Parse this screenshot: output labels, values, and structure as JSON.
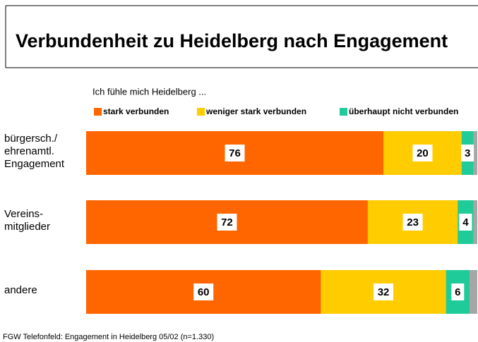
{
  "chart_data": {
    "type": "stacked-bar-horizontal",
    "title": "Verbundenheit zu Heidelberg nach Engagement",
    "subtitle": "Ich fühle mich Heidelberg ...",
    "categories": [
      "bürgersch./\nehrenamtl.\nEngagement",
      "Vereins-\nmitglieder",
      "andere"
    ],
    "series": [
      {
        "name": "stark verbunden",
        "color": "#ff6600",
        "values": [
          76,
          72,
          60
        ]
      },
      {
        "name": "weniger stark verbunden",
        "color": "#ffcc00",
        "values": [
          20,
          23,
          32
        ]
      },
      {
        "name": "überhaupt nicht verbunden",
        "color": "#1fcc99",
        "values": [
          3,
          4,
          6
        ]
      }
    ],
    "xlim": [
      0,
      100
    ],
    "legend": "top",
    "source": "FGW Telefonfeld: Engagement in Heidelberg 05/02 (n=1.330)"
  }
}
